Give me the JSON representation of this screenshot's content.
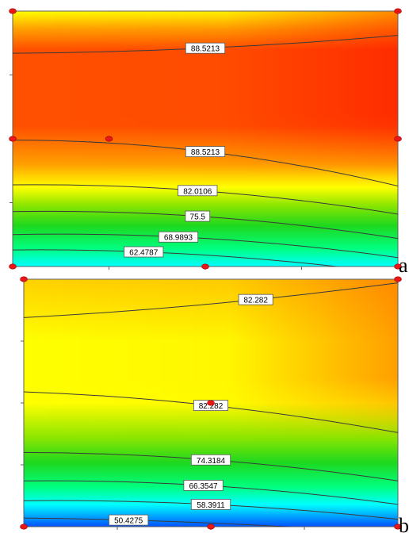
{
  "colors": {
    "scale": [
      "#00ffff",
      "#00ff80",
      "#1ed81e",
      "#8ce600",
      "#ffff00",
      "#ffa000",
      "#ff5000",
      "#ff0000"
    ],
    "contour": "#3a3a3a",
    "point": "#e81818"
  },
  "chart_data": [
    {
      "type": "contour",
      "panel_label": "a",
      "xlim": [
        0,
        1
      ],
      "ylim": [
        0,
        1
      ],
      "levels": [
        {
          "label": "88.5213",
          "points": [
            [
              0,
              0.835
            ],
            [
              0.5,
              0.855
            ],
            [
              1,
              0.905
            ]
          ],
          "label_at": 0.5
        },
        {
          "label": "88.5213",
          "points": [
            [
              0,
              0.495
            ],
            [
              0.5,
              0.45
            ],
            [
              1,
              0.315
            ]
          ],
          "label_at": 0.5
        },
        {
          "label": "82.0106",
          "points": [
            [
              0,
              0.32
            ],
            [
              0.5,
              0.295
            ],
            [
              1,
              0.205
            ]
          ],
          "label_at": 0.48
        },
        {
          "label": "75.5",
          "points": [
            [
              0,
              0.215
            ],
            [
              0.5,
              0.195
            ],
            [
              1,
              0.11
            ]
          ],
          "label_at": 0.48
        },
        {
          "label": "68.9893",
          "points": [
            [
              0,
              0.125
            ],
            [
              0.5,
              0.11
            ],
            [
              1,
              0.035
            ]
          ],
          "label_at": 0.43
        },
        {
          "label": "62.4787",
          "points": [
            [
              0,
              0.065
            ],
            [
              0.5,
              0.045
            ],
            [
              1,
              -0.03
            ]
          ],
          "label_at": 0.34
        }
      ],
      "field": {
        "bottom": 62,
        "band": [
          [
            0.45,
            1.0
          ],
          [
            0.86,
            0.0
          ]
        ],
        "top_right": 95,
        "top_left": 88,
        "center_left": 91,
        "center_right": 96,
        "bottom_left": 56
      },
      "points": [
        [
          0,
          0
        ],
        [
          0.5,
          0
        ],
        [
          1,
          0
        ],
        [
          0,
          0.5
        ],
        [
          0.25,
          0.5
        ],
        [
          1,
          0.5
        ],
        [
          0,
          1
        ],
        [
          1,
          1
        ]
      ]
    },
    {
      "type": "contour",
      "panel_label": "b",
      "xlim": [
        0,
        1
      ],
      "ylim": [
        0,
        1
      ],
      "levels": [
        {
          "label": "82.282",
          "points": [
            [
              0,
              0.845
            ],
            [
              0.5,
              0.9
            ],
            [
              1,
              0.985
            ]
          ],
          "label_at": 0.62
        },
        {
          "label": "82.282",
          "points": [
            [
              0,
              0.545
            ],
            [
              0.5,
              0.49
            ],
            [
              1,
              0.38
            ]
          ],
          "label_at": 0.5
        },
        {
          "label": "74.3184",
          "points": [
            [
              0,
              0.3
            ],
            [
              0.5,
              0.27
            ],
            [
              1,
              0.185
            ]
          ],
          "label_at": 0.5
        },
        {
          "label": "66.3547",
          "points": [
            [
              0,
              0.185
            ],
            [
              0.5,
              0.165
            ],
            [
              1,
              0.09
            ]
          ],
          "label_at": 0.48
        },
        {
          "label": "58.3911",
          "points": [
            [
              0,
              0.105
            ],
            [
              0.5,
              0.09
            ],
            [
              1,
              0.03
            ]
          ],
          "label_at": 0.5
        },
        {
          "label": "50.4275",
          "points": [
            [
              0,
              0.035
            ],
            [
              0.5,
              0.015
            ],
            [
              1,
              -0.03
            ]
          ],
          "label_at": 0.28
        }
      ],
      "points": [
        [
          0,
          0
        ],
        [
          0.5,
          0
        ],
        [
          1,
          0
        ],
        [
          0.5,
          0.5
        ],
        [
          0,
          1
        ],
        [
          1,
          1
        ]
      ]
    }
  ]
}
